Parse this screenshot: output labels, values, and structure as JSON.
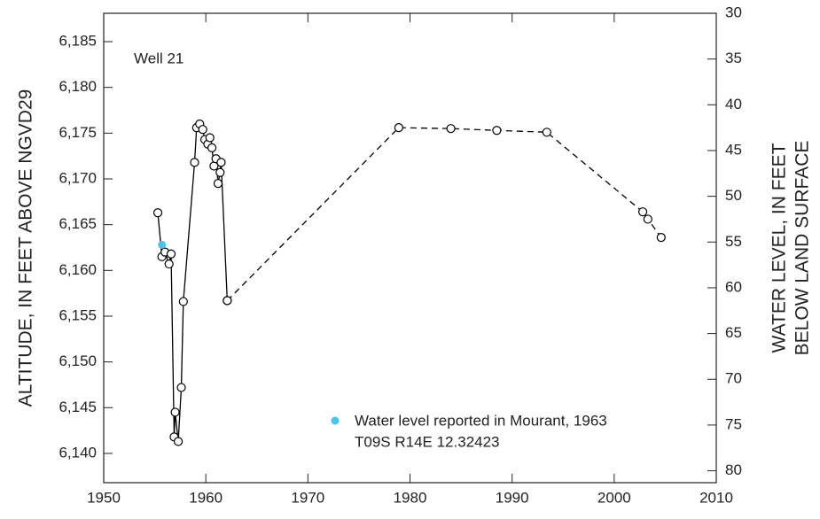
{
  "chart_data": {
    "type": "line",
    "annotations": [
      "Well 21",
      "T09S R14E 12.32423"
    ],
    "ylabel": "ALTITUDE, IN FEET ABOVE NGVD29",
    "y2label": [
      "WATER LEVEL, IN FEET",
      "BELOW LAND SURFACE"
    ],
    "xlim": [
      1950,
      2010
    ],
    "xticks": [
      1950,
      1960,
      1970,
      1980,
      1990,
      2000,
      2010
    ],
    "ylim": [
      6136.8,
      6188.1
    ],
    "yticks": [
      {
        "value": 6140,
        "label": "6,140"
      },
      {
        "value": 6145,
        "label": "6,145"
      },
      {
        "value": 6150,
        "label": "6,150"
      },
      {
        "value": 6155,
        "label": "6,155"
      },
      {
        "value": 6160,
        "label": "6,160"
      },
      {
        "value": 6165,
        "label": "6,165"
      },
      {
        "value": 6170,
        "label": "6,170"
      },
      {
        "value": 6175,
        "label": "6,175"
      },
      {
        "value": 6180,
        "label": "6,180"
      },
      {
        "value": 6185,
        "label": "6,185"
      }
    ],
    "y2lim": [
      81.3,
      30
    ],
    "y2ticks": [
      30,
      35,
      40,
      45,
      50,
      55,
      60,
      65,
      70,
      75,
      80
    ],
    "series": [
      {
        "color": "#000000",
        "style": "solid",
        "marker": "open",
        "x": [
          1955.3,
          1955.7,
          1956.0,
          1956.4,
          1956.6,
          1956.9,
          1957.0,
          1957.3,
          1957.6,
          1957.8,
          1958.9,
          1959.1,
          1959.4,
          1959.7,
          1959.9,
          1960.2,
          1960.4,
          1960.6,
          1960.8,
          1961.0,
          1961.2,
          1961.4,
          1961.5,
          1962.1
        ],
        "values": [
          6166.3,
          6161.5,
          6162.0,
          6160.7,
          6161.8,
          6141.8,
          6144.5,
          6141.3,
          6147.2,
          6156.6,
          6171.8,
          6175.6,
          6176.0,
          6175.4,
          6174.3,
          6173.8,
          6174.5,
          6173.4,
          6171.4,
          6172.2,
          6169.5,
          6170.7,
          6171.8,
          6156.7
        ]
      },
      {
        "color": "#000000",
        "style": "dashed",
        "marker": "open",
        "x": [
          1962.1,
          1978.9,
          1984.0,
          1988.5,
          1993.4,
          2002.8,
          2003.3,
          2004.6
        ],
        "values": [
          6156.7,
          6175.6,
          6175.5,
          6175.3,
          6175.1,
          6166.4,
          6165.6,
          6163.6
        ]
      },
      {
        "name": "Water level reported in Mourant, 1963",
        "color": "#4dc3ec",
        "style": "none",
        "marker": "filled",
        "x": [
          1955.7
        ],
        "values": [
          6162.8
        ]
      }
    ]
  }
}
